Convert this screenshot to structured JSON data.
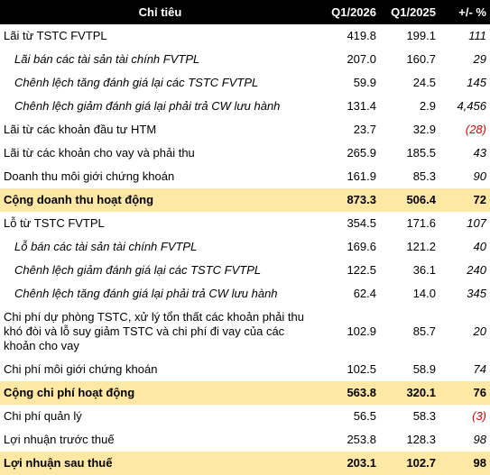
{
  "header": {
    "label": "Chỉ tiêu",
    "q1_2026": "Q1/2026",
    "q1_2025": "Q1/2025",
    "change": "+/- %"
  },
  "rows": [
    {
      "label": "Lãi từ TSTC FVTPL",
      "q26": "419.8",
      "q25": "199.1",
      "pct": "111",
      "style": "normal"
    },
    {
      "label": "Lãi bán các tài sản tài chính FVTPL",
      "q26": "207.0",
      "q25": "160.7",
      "pct": "29",
      "style": "sub"
    },
    {
      "label": "Chênh lệch tăng đánh giá lại các TSTC FVTPL",
      "q26": "59.9",
      "q25": "24.5",
      "pct": "145",
      "style": "sub"
    },
    {
      "label": "Chênh lệch giảm đánh giá lại phải trả CW lưu hành",
      "q26": "131.4",
      "q25": "2.9",
      "pct": "4,456",
      "style": "sub"
    },
    {
      "label": "Lãi từ các khoản đầu tư HTM",
      "q26": "23.7",
      "q25": "32.9",
      "pct": "(28)",
      "style": "normal",
      "negative": true
    },
    {
      "label": "Lãi từ các khoản cho vay và phải thu",
      "q26": "265.9",
      "q25": "185.5",
      "pct": "43",
      "style": "normal"
    },
    {
      "label": "Doanh thu môi giới chứng khoán",
      "q26": "161.9",
      "q25": "85.3",
      "pct": "90",
      "style": "normal"
    },
    {
      "label": "Cộng doanh thu hoạt động",
      "q26": "873.3",
      "q25": "506.4",
      "pct": "72",
      "style": "total"
    },
    {
      "label": "Lỗ từ TSTC FVTPL",
      "q26": "354.5",
      "q25": "171.6",
      "pct": "107",
      "style": "normal"
    },
    {
      "label": "Lỗ bán các tài sản tài chính FVTPL",
      "q26": "169.6",
      "q25": "121.2",
      "pct": "40",
      "style": "sub"
    },
    {
      "label": "Chênh lệch giảm đánh giá lại các TSTC FVTPL",
      "q26": "122.5",
      "q25": "36.1",
      "pct": "240",
      "style": "sub"
    },
    {
      "label": "Chênh lệch tăng đánh giá lại phải trả CW lưu hành",
      "q26": "62.4",
      "q25": "14.0",
      "pct": "345",
      "style": "sub"
    },
    {
      "label": "Chi phí dự phòng TSTC, xử lý tổn thất các khoản phải thu khó đòi và lỗ suy giảm TSTC và chi phí đi vay của các khoản cho vay",
      "q26": "102.9",
      "q25": "85.7",
      "pct": "20",
      "style": "tall"
    },
    {
      "label": "Chi phí môi giới chứng khoán",
      "q26": "102.5",
      "q25": "58.9",
      "pct": "74",
      "style": "normal"
    },
    {
      "label": "Cộng chi phí hoạt động",
      "q26": "563.8",
      "q25": "320.1",
      "pct": "76",
      "style": "total"
    },
    {
      "label": "Chi phí quản lý",
      "q26": "56.5",
      "q25": "58.3",
      "pct": "(3)",
      "style": "normal",
      "negative": true
    },
    {
      "label": "Lợi nhuận trước thuế",
      "q26": "253.8",
      "q25": "128.3",
      "pct": "98",
      "style": "normal"
    },
    {
      "label": "Lợi nhuận sau thuế",
      "q26": "203.1",
      "q25": "102.7",
      "pct": "98",
      "style": "total"
    }
  ]
}
